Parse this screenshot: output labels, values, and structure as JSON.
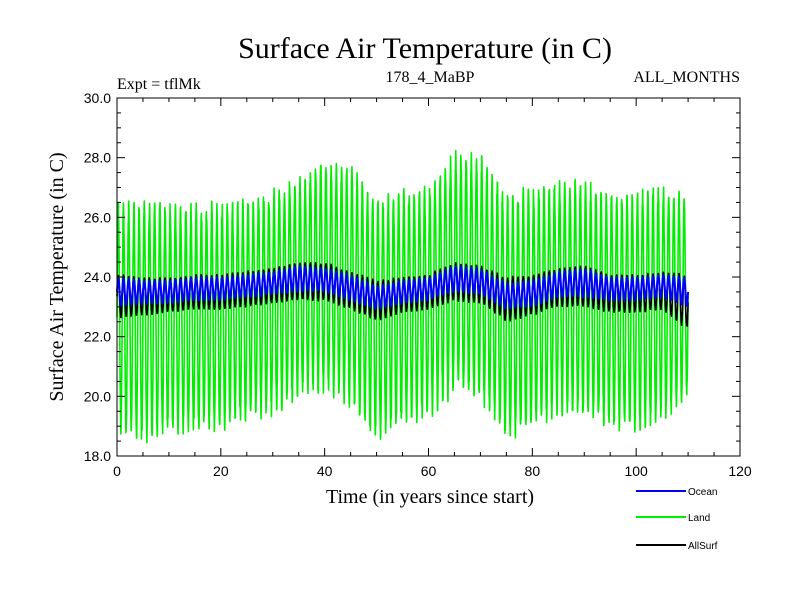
{
  "chart_data": {
    "type": "line",
    "title": "Surface Air Temperature (in C)",
    "subtitle_left": "Expt = tflMk",
    "subtitle_center": "178_4_MaBP",
    "subtitle_right": "ALL_MONTHS",
    "xlabel": "Time (in years since start)",
    "ylabel": "Surface Air Temperature (in C)",
    "xlim": [
      0,
      120
    ],
    "ylim": [
      18.0,
      30.0
    ],
    "x_ticks": [
      0,
      20,
      40,
      60,
      80,
      100,
      120
    ],
    "x_tick_labels": [
      "0",
      "20",
      "40",
      "60",
      "80",
      "100",
      "120"
    ],
    "y_ticks": [
      18,
      20,
      22,
      24,
      26,
      28,
      30
    ],
    "y_tick_labels": [
      "18.0",
      "20.0",
      "22.0",
      "24.0",
      "26.0",
      "28.0",
      "30.0"
    ],
    "grid": false,
    "legend_position": "bottom-right outside",
    "x_range": [
      0,
      110
    ],
    "seasonal_cycles_per_year": 1,
    "series": [
      {
        "name": "Ocean",
        "color": "#0000ff",
        "envelope_years": [
          0,
          5,
          10,
          15,
          20,
          25,
          30,
          35,
          40,
          45,
          50,
          55,
          60,
          65,
          70,
          75,
          80,
          85,
          90,
          95,
          100,
          105,
          110
        ],
        "envelope_max": [
          24.0,
          23.9,
          23.9,
          24.0,
          24.0,
          24.1,
          24.2,
          24.4,
          24.3,
          24.1,
          23.7,
          23.9,
          24.0,
          24.4,
          24.3,
          23.8,
          23.9,
          24.2,
          24.3,
          24.0,
          24.0,
          24.1,
          24.0
        ],
        "envelope_min": [
          23.0,
          23.1,
          23.1,
          23.2,
          23.2,
          23.3,
          23.4,
          23.5,
          23.5,
          23.2,
          22.9,
          23.1,
          23.2,
          23.5,
          23.4,
          22.9,
          23.0,
          23.3,
          23.3,
          23.2,
          23.2,
          23.3,
          23.0
        ]
      },
      {
        "name": "Land",
        "color": "#00ee00",
        "envelope_years": [
          0,
          5,
          10,
          15,
          20,
          25,
          30,
          35,
          40,
          45,
          50,
          55,
          60,
          65,
          70,
          75,
          80,
          85,
          90,
          95,
          100,
          105,
          110
        ],
        "envelope_max": [
          26.5,
          26.7,
          26.6,
          26.5,
          26.6,
          26.7,
          27.0,
          27.5,
          28.0,
          27.8,
          26.8,
          27.0,
          27.1,
          28.3,
          28.2,
          26.9,
          27.1,
          27.3,
          27.3,
          26.9,
          27.0,
          27.2,
          26.8
        ],
        "envelope_min": [
          18.8,
          18.3,
          18.7,
          18.7,
          18.8,
          19.1,
          19.3,
          19.8,
          20.1,
          19.6,
          18.4,
          18.9,
          19.2,
          20.0,
          19.8,
          18.4,
          18.7,
          19.3,
          19.2,
          18.8,
          18.7,
          19.0,
          19.9
        ]
      },
      {
        "name": "AllSurf",
        "color": "#000000",
        "envelope_years": [
          0,
          5,
          10,
          15,
          20,
          25,
          30,
          35,
          40,
          45,
          50,
          55,
          60,
          65,
          70,
          75,
          80,
          85,
          90,
          95,
          100,
          105,
          110
        ],
        "envelope_max": [
          24.1,
          24.0,
          24.0,
          24.1,
          24.1,
          24.2,
          24.3,
          24.5,
          24.5,
          24.2,
          23.9,
          24.0,
          24.1,
          24.5,
          24.4,
          24.0,
          24.1,
          24.3,
          24.4,
          24.1,
          24.1,
          24.2,
          24.1
        ],
        "envelope_min": [
          22.6,
          22.7,
          22.8,
          22.9,
          22.9,
          23.0,
          23.1,
          23.2,
          23.2,
          22.9,
          22.5,
          22.8,
          22.9,
          23.2,
          23.1,
          22.5,
          22.7,
          23.0,
          23.0,
          22.8,
          22.8,
          22.9,
          22.2
        ]
      }
    ]
  }
}
